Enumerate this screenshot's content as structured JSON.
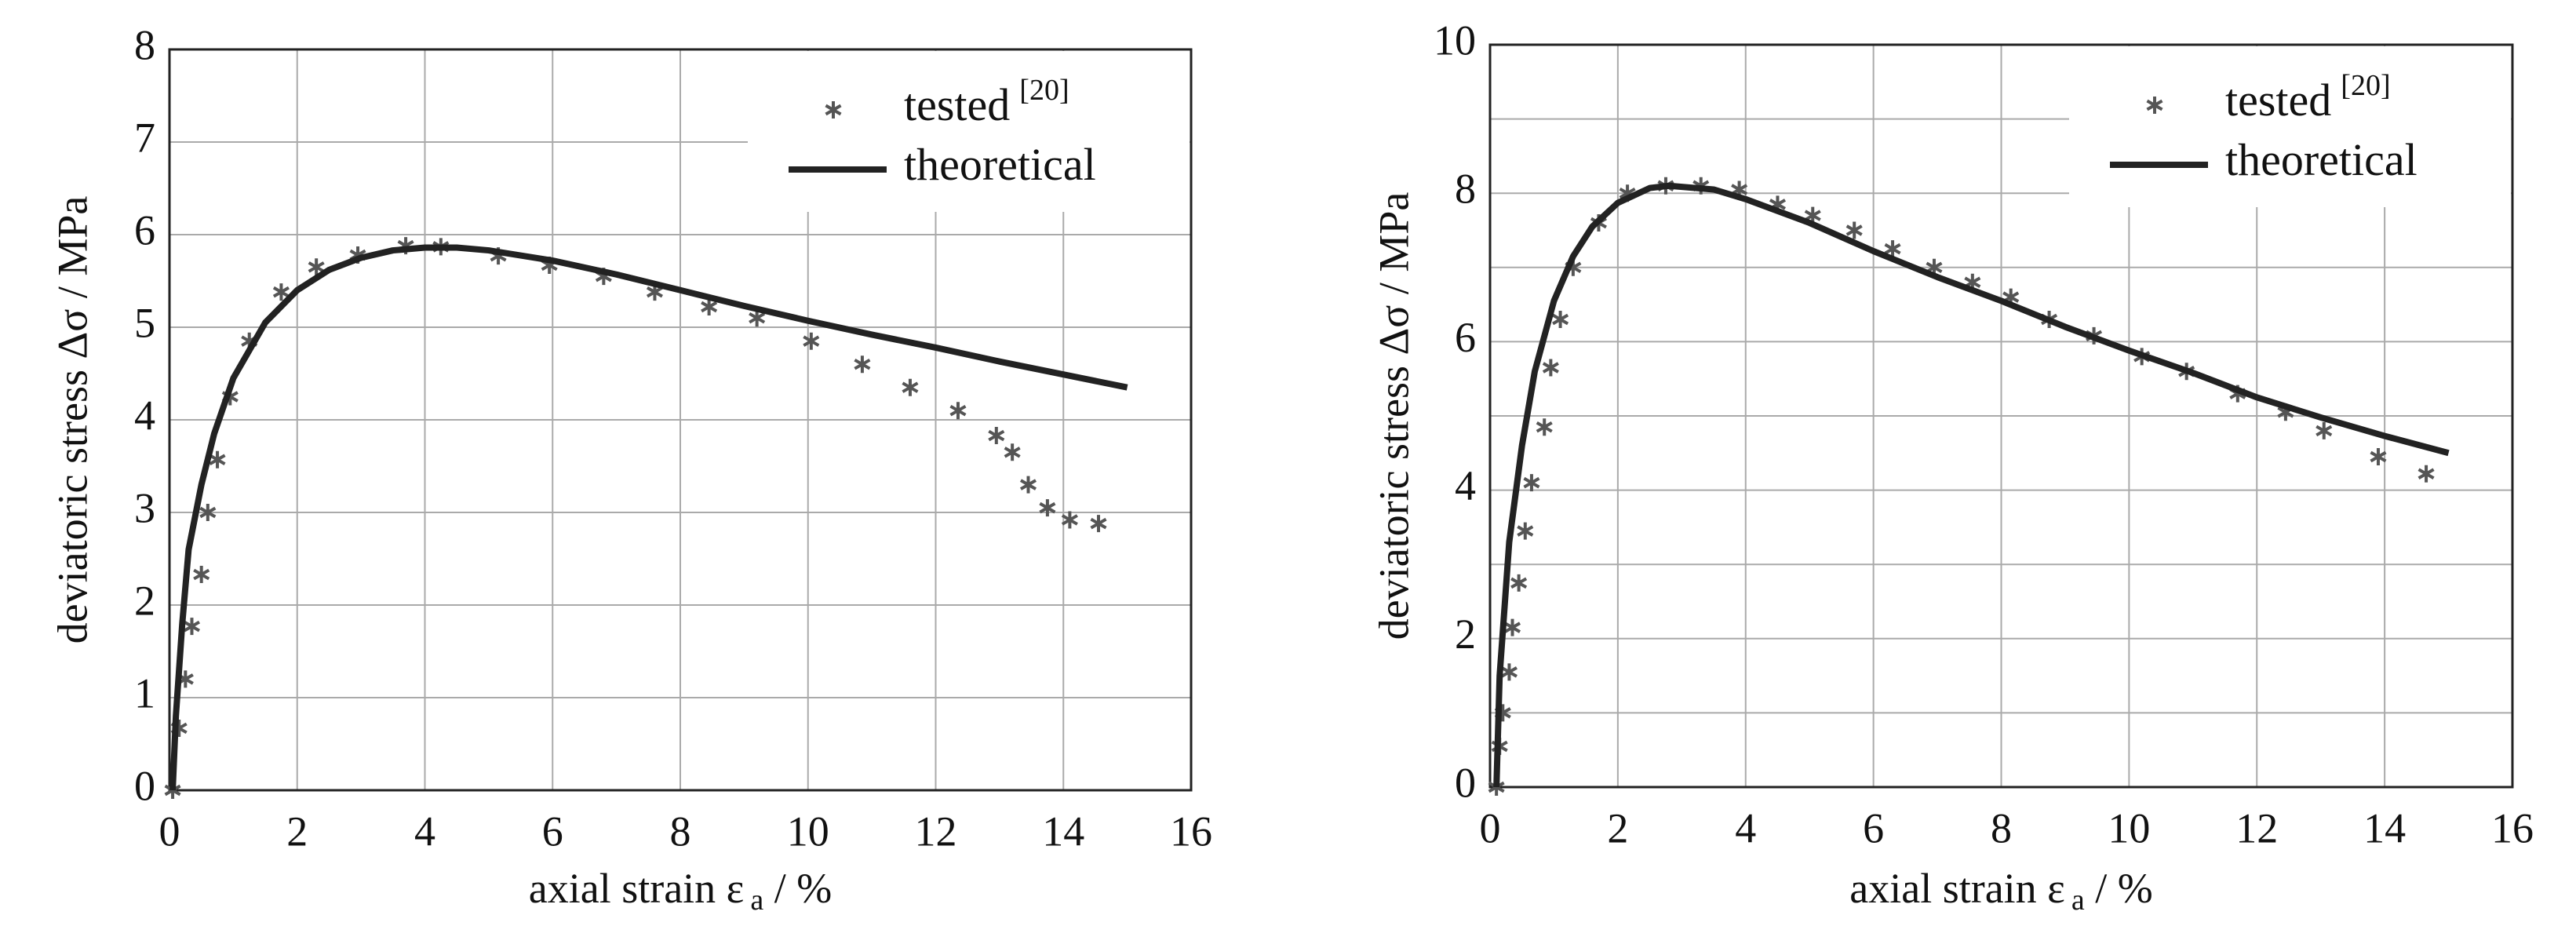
{
  "chart_data": [
    {
      "type": "line",
      "ylabel": {
        "text": "deviatoric stress Δσ / MPa"
      },
      "xlabel": {
        "text": "axial strain ε",
        "sub": "a",
        "unit": " / %"
      },
      "xlim": [
        0,
        16
      ],
      "xticks": [
        0,
        2,
        4,
        6,
        8,
        10,
        12,
        14,
        16
      ],
      "ylim": [
        0,
        8
      ],
      "yticks": [
        0,
        1,
        2,
        3,
        4,
        5,
        6,
        7,
        8
      ],
      "grid": true,
      "legend": "upper right",
      "series": [
        {
          "name": "tested",
          "reference": "[20]",
          "type": "scatter",
          "color": "#555555",
          "x": [
            0.05,
            0.15,
            0.25,
            0.35,
            0.5,
            0.6,
            0.75,
            0.95,
            1.25,
            1.75,
            2.3,
            2.95,
            3.7,
            4.25,
            5.15,
            5.95,
            6.8,
            7.6,
            8.45,
            9.2,
            10.05,
            10.85,
            11.6,
            12.35,
            12.95,
            13.2,
            13.45,
            13.75,
            14.1,
            14.55
          ],
          "values": [
            0,
            0.67,
            1.2,
            1.77,
            2.33,
            3.0,
            3.57,
            4.25,
            4.85,
            5.38,
            5.65,
            5.78,
            5.88,
            5.87,
            5.77,
            5.67,
            5.55,
            5.38,
            5.22,
            5.1,
            4.85,
            4.6,
            4.35,
            4.1,
            3.83,
            3.65,
            3.3,
            3.05,
            2.92,
            2.88
          ]
        },
        {
          "name": "theoretical",
          "type": "line",
          "color": "#222222",
          "x": [
            0.05,
            0.1,
            0.2,
            0.3,
            0.5,
            0.7,
            1,
            1.5,
            2,
            2.5,
            3,
            3.5,
            4,
            4.5,
            5,
            6,
            7,
            8,
            9,
            10,
            11,
            12,
            13,
            14,
            15
          ],
          "values": [
            0,
            0.8,
            1.8,
            2.6,
            3.3,
            3.85,
            4.45,
            5.05,
            5.4,
            5.62,
            5.75,
            5.83,
            5.86,
            5.86,
            5.83,
            5.72,
            5.57,
            5.4,
            5.23,
            5.07,
            4.92,
            4.78,
            4.63,
            4.49,
            4.35
          ]
        }
      ]
    },
    {
      "type": "line",
      "ylabel": {
        "text": "deviatoric stress Δσ / MPa"
      },
      "xlabel": {
        "text": "axial strain ε",
        "sub": "a",
        "unit": " / %"
      },
      "xlim": [
        0,
        16
      ],
      "xticks": [
        0,
        2,
        4,
        6,
        8,
        10,
        12,
        14,
        16
      ],
      "ylim": [
        0,
        10
      ],
      "yticks": [
        0,
        2,
        4,
        6,
        8,
        10
      ],
      "yminor": [
        1,
        3,
        5,
        7,
        9
      ],
      "grid": true,
      "legend": "upper right",
      "series": [
        {
          "name": "tested",
          "reference": "[20]",
          "type": "scatter",
          "color": "#555555",
          "x": [
            0.1,
            0.15,
            0.2,
            0.3,
            0.35,
            0.45,
            0.55,
            0.65,
            0.85,
            0.95,
            1.1,
            1.3,
            1.7,
            2.15,
            2.75,
            3.3,
            3.9,
            4.5,
            5.05,
            5.7,
            6.3,
            6.95,
            7.55,
            8.15,
            8.75,
            9.45,
            10.2,
            10.9,
            11.7,
            12.45,
            13.05,
            13.9,
            14.65
          ],
          "values": [
            0,
            0.55,
            1.0,
            1.55,
            2.15,
            2.75,
            3.45,
            4.1,
            4.85,
            5.65,
            6.3,
            7.0,
            7.6,
            8.0,
            8.1,
            8.1,
            8.05,
            7.85,
            7.7,
            7.5,
            7.25,
            7.0,
            6.8,
            6.6,
            6.3,
            6.08,
            5.8,
            5.6,
            5.3,
            5.05,
            4.8,
            4.45,
            4.22
          ]
        },
        {
          "name": "theoretical",
          "type": "line",
          "color": "#222222",
          "x": [
            0.1,
            0.15,
            0.3,
            0.5,
            0.7,
            1,
            1.3,
            1.6,
            2,
            2.5,
            2.8,
            3.5,
            4,
            5,
            6,
            7,
            8,
            9,
            10,
            11,
            12,
            13,
            14,
            15
          ],
          "values": [
            0,
            1.5,
            3.3,
            4.6,
            5.6,
            6.55,
            7.15,
            7.55,
            7.87,
            8.07,
            8.1,
            8.05,
            7.92,
            7.6,
            7.22,
            6.87,
            6.55,
            6.2,
            5.88,
            5.58,
            5.25,
            4.98,
            4.73,
            4.5
          ]
        }
      ]
    }
  ]
}
